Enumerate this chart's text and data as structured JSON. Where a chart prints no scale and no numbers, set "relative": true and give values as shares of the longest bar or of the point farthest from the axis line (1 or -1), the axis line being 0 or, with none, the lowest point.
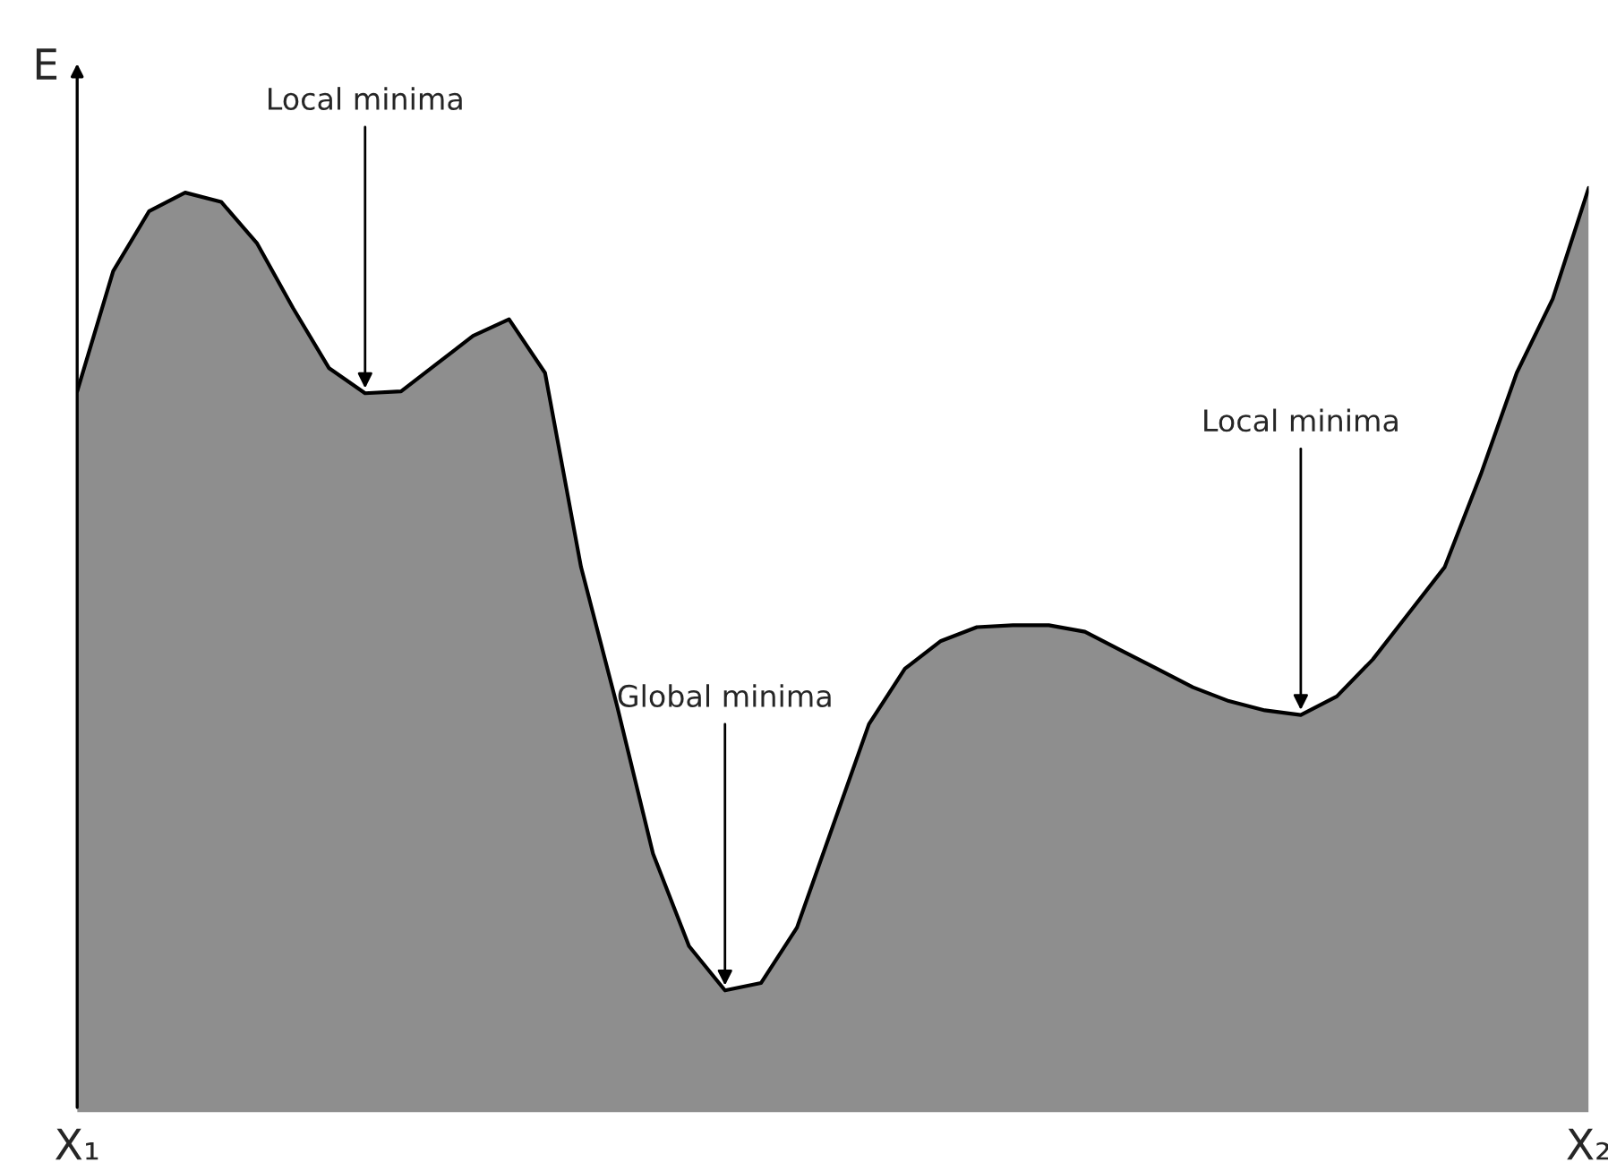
{
  "chart_data": {
    "type": "area",
    "relative": true,
    "ylabel": "E",
    "color": "#8e8e8e",
    "categories": [
      "X₁",
      null,
      null,
      null,
      null,
      null,
      null,
      null,
      null,
      null,
      null,
      null,
      null,
      null,
      null,
      null,
      null,
      null,
      null,
      null,
      null,
      null,
      null,
      null,
      null,
      null,
      null,
      null,
      null,
      null,
      null,
      null,
      null,
      null,
      null,
      null,
      null,
      null,
      null,
      null,
      null,
      null,
      "X₂"
    ],
    "values": [
      0.78,
      0.91,
      0.975,
      0.995,
      0.985,
      0.94,
      0.87,
      0.805,
      0.778,
      0.78,
      0.81,
      0.84,
      0.858,
      0.8,
      0.59,
      0.44,
      0.28,
      0.18,
      0.132,
      0.14,
      0.2,
      0.31,
      0.42,
      0.48,
      0.51,
      0.525,
      0.527,
      0.527,
      0.52,
      0.5,
      0.48,
      0.46,
      0.445,
      0.435,
      0.43,
      0.45,
      0.49,
      0.54,
      0.59,
      0.69,
      0.8,
      0.88,
      1.0
    ],
    "annotations": [
      {
        "text": "Local minima",
        "y": 0.778
      },
      {
        "text": "Global minima",
        "y": 0.132
      },
      {
        "text": "Local minima",
        "y": 0.43
      }
    ]
  }
}
